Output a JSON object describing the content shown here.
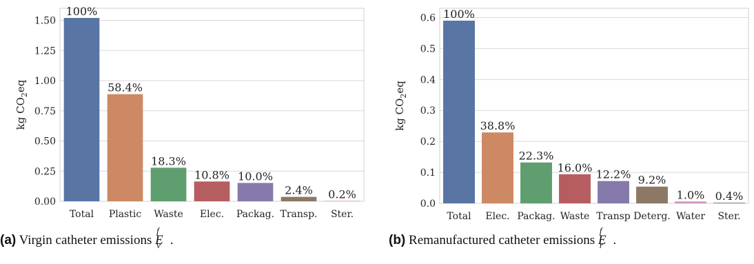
{
  "chart_data": [
    {
      "type": "bar",
      "ylabel": "kg CO",
      "ylabel_sub": "2",
      "ylabel_tail": "eq",
      "ylim": [
        0,
        1.6
      ],
      "yticks": [
        0.0,
        0.25,
        0.5,
        0.75,
        1.0,
        1.25,
        1.5
      ],
      "ytick_labels": [
        "0.00",
        "0.25",
        "0.50",
        "0.75",
        "1.00",
        "1.25",
        "1.50"
      ],
      "categories": [
        "Total",
        "Plastic",
        "Waste",
        "Elec.",
        "Packag.",
        "Transp.",
        "Ster."
      ],
      "values": [
        1.52,
        0.888,
        0.278,
        0.164,
        0.152,
        0.0365,
        0.003
      ],
      "data_labels": [
        "100%",
        "58.4%",
        "18.3%",
        "10.8%",
        "10.0%",
        "2.4%",
        "0.2%"
      ],
      "colors": [
        "#5875a4",
        "#cc8963",
        "#5f9e6e",
        "#b55d60",
        "#857aab",
        "#8d7866",
        "#d095bf"
      ],
      "grid": true,
      "legend": "none",
      "caption": {
        "tag": "(a)",
        "text": "Virgin catheter emissions",
        "symbol": "E",
        "sup": "f",
        "sub": "v",
        "end": "."
      }
    },
    {
      "type": "bar",
      "ylabel": "kg CO",
      "ylabel_sub": "2",
      "ylabel_tail": "eq",
      "ylim": [
        0,
        0.63
      ],
      "yticks": [
        0.0,
        0.1,
        0.2,
        0.3,
        0.4,
        0.5,
        0.6
      ],
      "ytick_labels": [
        "0.0",
        "0.1",
        "0.2",
        "0.3",
        "0.4",
        "0.5",
        "0.6"
      ],
      "categories": [
        "Total",
        "Elec.",
        "Packag.",
        "Waste",
        "Transp",
        "Deterg.",
        "Water",
        "Ster."
      ],
      "values": [
        0.59,
        0.229,
        0.132,
        0.094,
        0.072,
        0.054,
        0.006,
        0.0024
      ],
      "data_labels": [
        "100%",
        "38.8%",
        "22.3%",
        "16.0%",
        "12.2%",
        "9.2%",
        "1.0%",
        "0.4%"
      ],
      "colors": [
        "#5875a4",
        "#cc8963",
        "#5f9e6e",
        "#b55d60",
        "#857aab",
        "#8d7866",
        "#d095bf",
        "#8c8c8c"
      ],
      "grid": true,
      "legend": "none",
      "caption": {
        "tag": "(b)",
        "text": "Remanufactured catheter emissions",
        "symbol": "E",
        "sup": "f",
        "sub": "r",
        "end": "."
      }
    }
  ]
}
